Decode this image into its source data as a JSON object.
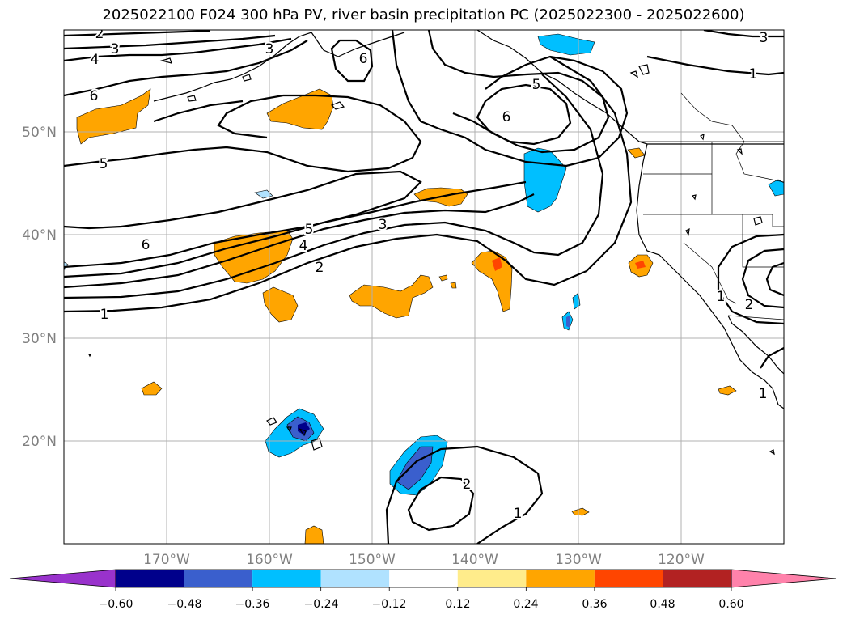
{
  "title": "2025022100 F024 300 hPa PV, river basin precipitation PC (2025022300 - 2025022600)",
  "lat_labels": [
    "50°N",
    "40°N",
    "30°N",
    "20°N"
  ],
  "lon_labels": [
    "170°W",
    "160°W",
    "150°W",
    "140°W",
    "130°W",
    "120°W"
  ],
  "contour_labels": [
    "2",
    "3",
    "4",
    "6",
    "5",
    "3",
    "6",
    "5",
    "6",
    "5",
    "4",
    "3",
    "2",
    "1",
    "6",
    "1",
    "3",
    "1",
    "2",
    "1",
    "2",
    "1"
  ],
  "colorbar": {
    "tick_labels": [
      "−0.60",
      "−0.48",
      "−0.36",
      "−0.24",
      "−0.12",
      "0.12",
      "0.24",
      "0.36",
      "0.48",
      "0.60"
    ],
    "colors": [
      "#9932cc",
      "#00008b",
      "#3a5fcd",
      "#00bfff",
      "#b0e2ff",
      "#ffffff",
      "#ffec8b",
      "#ffa500",
      "#ff4500",
      "#b22222",
      "#ff82ab"
    ]
  },
  "palette": {
    "orange": "#ffa500",
    "light_yellow": "#ffec8b",
    "red_orange": "#ff4500",
    "deep_sky_blue": "#00bfff",
    "light_blue": "#b0e2ff",
    "royal_blue": "#3a5fcd",
    "navy": "#00008b"
  }
}
